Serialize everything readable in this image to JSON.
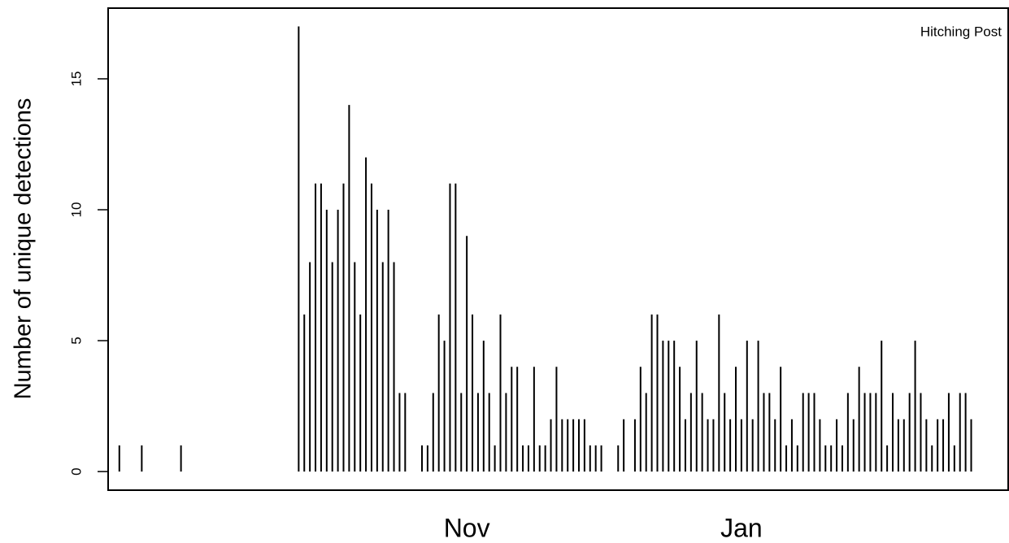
{
  "chart_data": {
    "type": "spike",
    "ylabel": "Number of unique detections",
    "annotation": "Hitching Post",
    "color": "#000000",
    "x": [
      0,
      4,
      11,
      32,
      33,
      34,
      35,
      36,
      37,
      38,
      39,
      40,
      41,
      42,
      43,
      44,
      45,
      46,
      47,
      48,
      49,
      50,
      51,
      54,
      55,
      56,
      57,
      58,
      59,
      60,
      61,
      62,
      63,
      64,
      65,
      66,
      67,
      68,
      69,
      70,
      71,
      72,
      73,
      74,
      75,
      76,
      77,
      78,
      79,
      80,
      81,
      82,
      83,
      84,
      85,
      86,
      89,
      90,
      92,
      93,
      94,
      95,
      96,
      97,
      98,
      99,
      100,
      101,
      102,
      103,
      104,
      105,
      106,
      107,
      108,
      109,
      110,
      111,
      112,
      113,
      114,
      115,
      116,
      117,
      118,
      119,
      120,
      121,
      122,
      123,
      124,
      125,
      126,
      127,
      128,
      129,
      130,
      131,
      132,
      133,
      134,
      135,
      136,
      137,
      138,
      139,
      140,
      141,
      142,
      143,
      144,
      145,
      146,
      147,
      148,
      149,
      150,
      151,
      152
    ],
    "values": [
      1,
      1,
      1,
      17,
      6,
      8,
      11,
      11,
      10,
      8,
      10,
      11,
      14,
      8,
      6,
      12,
      11,
      10,
      8,
      10,
      8,
      3,
      3,
      1,
      1,
      3,
      6,
      5,
      11,
      11,
      3,
      9,
      6,
      3,
      5,
      3,
      1,
      6,
      3,
      4,
      4,
      1,
      1,
      4,
      1,
      1,
      2,
      4,
      2,
      2,
      2,
      2,
      2,
      1,
      1,
      1,
      1,
      2,
      2,
      4,
      3,
      6,
      6,
      5,
      5,
      5,
      4,
      2,
      3,
      5,
      3,
      2,
      2,
      6,
      3,
      2,
      4,
      2,
      5,
      2,
      5,
      3,
      3,
      2,
      4,
      1,
      2,
      1,
      3,
      3,
      3,
      2,
      1,
      1,
      2,
      1,
      3,
      2,
      4,
      3,
      3,
      3,
      5,
      1,
      3,
      2,
      2,
      3,
      5,
      3,
      2,
      1,
      2,
      2,
      3,
      1,
      3,
      3,
      2
    ],
    "xlim": [
      -2,
      158.6
    ],
    "xticks": [
      {
        "value": 62,
        "label": "Nov"
      },
      {
        "value": 111,
        "label": "Jan"
      }
    ],
    "ylim": [
      -0.71,
      17.7
    ],
    "yticks": [
      0,
      5,
      10,
      15
    ]
  }
}
